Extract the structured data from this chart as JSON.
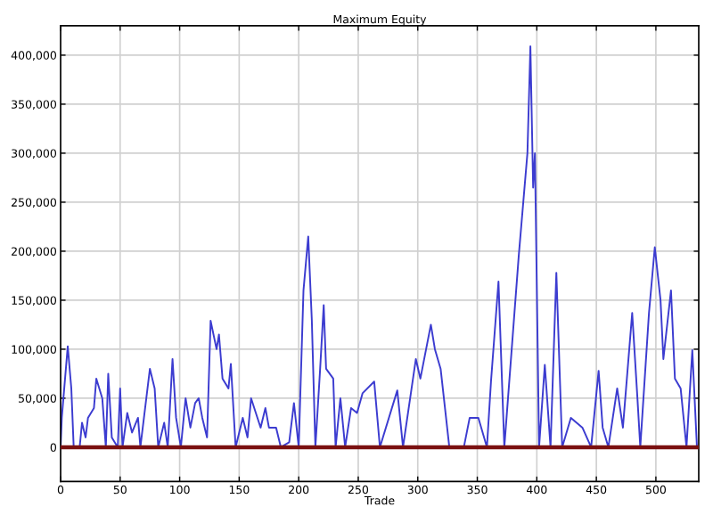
{
  "chart_data": {
    "type": "line",
    "title": "Maximum Equity",
    "xlabel": "Trade",
    "xlim": [
      0,
      536
    ],
    "ylim": [
      -35000,
      430000
    ],
    "xticks": [
      0,
      50,
      100,
      150,
      200,
      250,
      300,
      350,
      400,
      450,
      500
    ],
    "yticks": [
      {
        "value": 0,
        "label": "0"
      },
      {
        "value": 50000,
        "label": "50,000"
      },
      {
        "value": 100000,
        "label": "100,000"
      },
      {
        "value": 150000,
        "label": "150,000"
      },
      {
        "value": 200000,
        "label": "200,000"
      },
      {
        "value": 250000,
        "label": "250,000"
      },
      {
        "value": 300000,
        "label": "300,000"
      },
      {
        "value": 350000,
        "label": "350,000"
      },
      {
        "value": 400000,
        "label": "400,000"
      }
    ],
    "grid": true,
    "line_style": "solid",
    "ref_lines": [
      {
        "axis": "y",
        "value": 0,
        "color": "#7a1010"
      }
    ],
    "series": [
      {
        "color": "#3c3cd0",
        "x": [
          0,
          1,
          6,
          9,
          11,
          16,
          18,
          21,
          23,
          28,
          30,
          35,
          38,
          40,
          43,
          48,
          50,
          52,
          56,
          60,
          65,
          67,
          75,
          79,
          82,
          87,
          90,
          94,
          97,
          101,
          105,
          109,
          113,
          116,
          119,
          123,
          126,
          131,
          133,
          136,
          141,
          143,
          147,
          153,
          157,
          160,
          164,
          168,
          172,
          175,
          181,
          185,
          192,
          196,
          200,
          204,
          208,
          211,
          214,
          218,
          221,
          223,
          229,
          231,
          235,
          239,
          244,
          249,
          253.6,
          263.4,
          268.2,
          282.8,
          287.6,
          298.4,
          302.2,
          311,
          314.4,
          319.2,
          326.5,
          338.7,
          343.6,
          350.9,
          358.1,
          361.5,
          367.8,
          372.7,
          384.8,
          392.1,
          394.6,
          396.9,
          398.4,
          401.9,
          406.7,
          411.5,
          416.4,
          421.3,
          428.6,
          438.3,
          445.6,
          451.9,
          455.3,
          460.1,
          467.5,
          472.3,
          480.1,
          484.5,
          486.9,
          494.2,
          499.1,
          503.9,
          506.3,
          512.7,
          516,
          520.8,
          525.7,
          530.6,
          534.5
        ],
        "values": [
          0,
          30000,
          103000,
          60000,
          0,
          0,
          25000,
          10000,
          30000,
          40000,
          70000,
          50000,
          0,
          75000,
          10000,
          0,
          60000,
          0,
          35000,
          15000,
          30000,
          0,
          80000,
          60000,
          0,
          25000,
          0,
          90000,
          30000,
          0,
          50000,
          20000,
          45000,
          50000,
          30000,
          10000,
          129000,
          100000,
          115000,
          70000,
          60000,
          85000,
          0,
          30000,
          10000,
          50000,
          35000,
          20000,
          40000,
          20000,
          20000,
          0,
          5000,
          45000,
          0,
          160000,
          215000,
          130000,
          0,
          80000,
          145000,
          80000,
          70000,
          0,
          50000,
          0,
          40000,
          35000,
          55000,
          67000,
          0,
          58000,
          0,
          90000,
          70000,
          125000,
          100000,
          80000,
          0,
          0,
          30000,
          30000,
          0,
          67000,
          169000,
          0,
          195000,
          300000,
          409000,
          265000,
          300000,
          0,
          84000,
          0,
          178000,
          0,
          30000,
          20000,
          0,
          78000,
          20000,
          0,
          60000,
          20000,
          137000,
          50000,
          0,
          137000,
          204000,
          150000,
          90000,
          160000,
          70000,
          60000,
          0,
          99000,
          0
        ]
      }
    ]
  }
}
